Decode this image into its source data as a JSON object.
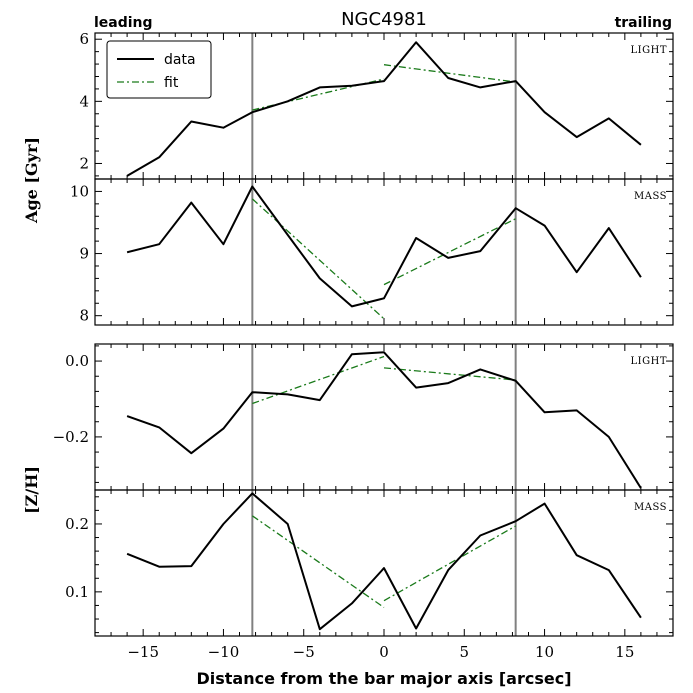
{
  "figure": {
    "title": "NGC4981",
    "corner_left": "leading",
    "corner_right": "trailing",
    "xlabel": "Distance from the bar major axis [arcsec]",
    "ylabel_top": "Age [Gyr]",
    "ylabel_bottom": "[Z/H]",
    "data_color": "#000000",
    "fit_color": "#1a7a1a",
    "vline_color": "#808080"
  },
  "chart_data": [
    {
      "type": "line",
      "panel": "age-light",
      "tag": "LIGHT",
      "legend": [
        "data",
        "fit"
      ],
      "legend_location": "top-left",
      "xlim": [
        -18,
        18
      ],
      "ylim": [
        1.5,
        6.2
      ],
      "xticks": [
        -15,
        -10,
        -5,
        0,
        5,
        10,
        15
      ],
      "xtick_labels_visible": false,
      "yticks": [
        2,
        4,
        6
      ],
      "ytick_labels": [
        "2",
        "4",
        "6"
      ],
      "vlines": [
        -8.2,
        8.2
      ],
      "series": [
        {
          "name": "data",
          "x": [
            -16,
            -14,
            -12,
            -10,
            -8.2,
            -6,
            -4,
            -2,
            0,
            2,
            4,
            6,
            8.2,
            10,
            12,
            14,
            16
          ],
          "y": [
            1.6,
            2.2,
            3.35,
            3.15,
            3.65,
            4.0,
            4.45,
            4.5,
            4.65,
            5.9,
            4.75,
            4.45,
            4.65,
            3.65,
            2.85,
            3.45,
            2.6
          ]
        },
        {
          "name": "fit",
          "segments": [
            {
              "x": [
                -8.2,
                0
              ],
              "y": [
                3.72,
                4.72
              ]
            },
            {
              "x": [
                0,
                8.2
              ],
              "y": [
                5.18,
                4.62
              ]
            }
          ]
        }
      ]
    },
    {
      "type": "line",
      "panel": "age-mass",
      "tag": "MASS",
      "xlim": [
        -18,
        18
      ],
      "ylim": [
        7.85,
        10.2
      ],
      "xticks": [
        -15,
        -10,
        -5,
        0,
        5,
        10,
        15
      ],
      "xtick_labels_visible": false,
      "yticks": [
        8,
        9,
        10
      ],
      "ytick_labels": [
        "8",
        "9",
        "10"
      ],
      "vlines": [
        -8.2,
        8.2
      ],
      "series": [
        {
          "name": "data",
          "x": [
            -16,
            -14,
            -12,
            -10,
            -8.2,
            -6,
            -4,
            -2,
            0,
            2,
            4,
            6,
            8.2,
            10,
            12,
            14,
            16
          ],
          "y": [
            9.02,
            9.15,
            9.82,
            9.15,
            10.08,
            9.3,
            8.6,
            8.15,
            8.28,
            9.25,
            8.93,
            9.04,
            9.73,
            9.45,
            8.7,
            9.41,
            8.62
          ]
        },
        {
          "name": "fit",
          "segments": [
            {
              "x": [
                -8.2,
                0
              ],
              "y": [
                9.88,
                7.95
              ]
            },
            {
              "x": [
                0,
                8.2
              ],
              "y": [
                8.5,
                9.56
              ]
            }
          ]
        }
      ]
    },
    {
      "type": "line",
      "panel": "zh-light",
      "tag": "LIGHT",
      "xlim": [
        -18,
        18
      ],
      "ylim": [
        -0.34,
        0.045
      ],
      "xticks": [
        -15,
        -10,
        -5,
        0,
        5,
        10,
        15
      ],
      "xtick_labels_visible": false,
      "yticks": [
        -0.2,
        0.0
      ],
      "ytick_labels": [
        "−0.2",
        "0.0"
      ],
      "vlines": [
        -8.2,
        8.2
      ],
      "series": [
        {
          "name": "data",
          "x": [
            -16,
            -14,
            -12,
            -10,
            -8.2,
            -6,
            -4,
            -2,
            0,
            2,
            4,
            6,
            8.2,
            10,
            12,
            14,
            16
          ],
          "y": [
            -0.145,
            -0.175,
            -0.243,
            -0.178,
            -0.082,
            -0.088,
            -0.103,
            0.018,
            0.023,
            -0.07,
            -0.058,
            -0.022,
            -0.052,
            -0.135,
            -0.13,
            -0.2,
            -0.335
          ]
        },
        {
          "name": "fit",
          "segments": [
            {
              "x": [
                -8.2,
                0
              ],
              "y": [
                -0.112,
                0.012
              ]
            },
            {
              "x": [
                0,
                8.2
              ],
              "y": [
                -0.018,
                -0.05
              ]
            }
          ]
        }
      ]
    },
    {
      "type": "line",
      "panel": "zh-mass",
      "tag": "MASS",
      "xlim": [
        -18,
        18
      ],
      "ylim": [
        0.035,
        0.25
      ],
      "xticks": [
        -15,
        -10,
        -5,
        0,
        5,
        10,
        15
      ],
      "xtick_labels": [
        "−15",
        "−10",
        "−5",
        "0",
        "5",
        "10",
        "15"
      ],
      "yticks": [
        0.1,
        0.2
      ],
      "ytick_labels": [
        "0.1",
        "0.2"
      ],
      "vlines": [
        -8.2,
        8.2
      ],
      "series": [
        {
          "name": "data",
          "x": [
            -16,
            -14,
            -12,
            -10,
            -8.2,
            -6,
            -4,
            -2,
            0,
            2,
            4,
            6,
            8.2,
            10,
            12,
            14,
            16
          ],
          "y": [
            0.156,
            0.137,
            0.138,
            0.2,
            0.245,
            0.2,
            0.045,
            0.083,
            0.135,
            0.046,
            0.132,
            0.183,
            0.204,
            0.23,
            0.154,
            0.132,
            0.062
          ]
        },
        {
          "name": "fit",
          "segments": [
            {
              "x": [
                -8.2,
                0
              ],
              "y": [
                0.212,
                0.077
              ]
            },
            {
              "x": [
                0,
                8.2
              ],
              "y": [
                0.087,
                0.197
              ]
            }
          ]
        }
      ]
    }
  ]
}
